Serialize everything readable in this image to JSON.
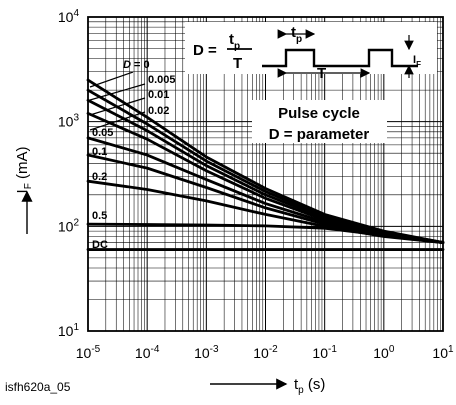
{
  "chart_data": {
    "type": "line",
    "figure_id": "isfh620a_05",
    "xlabel": {
      "prefix": "t",
      "sub": "p",
      "suffix": " (s)"
    },
    "ylabel": {
      "prefix": "I",
      "sub": "F",
      "suffix": " (mA)"
    },
    "xscale": "log",
    "yscale": "log",
    "xlim": [
      1e-05,
      10
    ],
    "ylim": [
      10,
      10000
    ],
    "grid": true,
    "x_ticks": [
      {
        "base": "10",
        "exp": "-5",
        "value": 1e-05
      },
      {
        "base": "10",
        "exp": "-4",
        "value": 0.0001
      },
      {
        "base": "10",
        "exp": "-3",
        "value": 0.001
      },
      {
        "base": "10",
        "exp": "-2",
        "value": 0.01
      },
      {
        "base": "10",
        "exp": "-1",
        "value": 0.1
      },
      {
        "base": "10",
        "exp": "0",
        "value": 1
      },
      {
        "base": "10",
        "exp": "1",
        "value": 10
      }
    ],
    "y_ticks": [
      {
        "base": "10",
        "exp": "1",
        "value": 10
      },
      {
        "base": "10",
        "exp": "2",
        "value": 100
      },
      {
        "base": "10",
        "exp": "3",
        "value": 1000
      },
      {
        "base": "10",
        "exp": "4",
        "value": 10000
      }
    ],
    "series_labels": [
      "D = 0",
      "0.005",
      "0.01",
      "0.02",
      "0.05",
      "0.1",
      "0.2",
      "0.5",
      "DC"
    ],
    "series": [
      {
        "name": "D = 0",
        "points": [
          [
            1e-05,
            2500
          ],
          [
            0.0001,
            1100
          ],
          [
            0.001,
            460
          ],
          [
            0.01,
            230
          ],
          [
            0.1,
            130
          ],
          [
            1,
            90
          ],
          [
            10,
            70
          ]
        ]
      },
      {
        "name": "0.005",
        "points": [
          [
            1e-05,
            2000
          ],
          [
            0.0001,
            950
          ],
          [
            0.001,
            420
          ],
          [
            0.01,
            215
          ],
          [
            0.1,
            125
          ],
          [
            1,
            88
          ],
          [
            10,
            70
          ]
        ]
      },
      {
        "name": "0.01",
        "points": [
          [
            1e-05,
            1600
          ],
          [
            0.0001,
            820
          ],
          [
            0.001,
            380
          ],
          [
            0.01,
            200
          ],
          [
            0.1,
            120
          ],
          [
            1,
            86
          ],
          [
            10,
            70
          ]
        ]
      },
      {
        "name": "0.02",
        "points": [
          [
            1e-05,
            1200
          ],
          [
            0.0001,
            680
          ],
          [
            0.001,
            340
          ],
          [
            0.01,
            185
          ],
          [
            0.1,
            115
          ],
          [
            1,
            85
          ],
          [
            10,
            70
          ]
        ]
      },
      {
        "name": "0.05",
        "points": [
          [
            1e-05,
            700
          ],
          [
            0.0001,
            480
          ],
          [
            0.001,
            280
          ],
          [
            0.01,
            165
          ],
          [
            0.1,
            110
          ],
          [
            1,
            83
          ],
          [
            10,
            70
          ]
        ]
      },
      {
        "name": "0.1",
        "points": [
          [
            1e-05,
            480
          ],
          [
            0.0001,
            360
          ],
          [
            0.001,
            235
          ],
          [
            0.01,
            150
          ],
          [
            0.1,
            105
          ],
          [
            1,
            82
          ],
          [
            10,
            70
          ]
        ]
      },
      {
        "name": "0.2",
        "points": [
          [
            1e-05,
            270
          ],
          [
            0.0001,
            225
          ],
          [
            0.001,
            175
          ],
          [
            0.01,
            130
          ],
          [
            0.1,
            100
          ],
          [
            1,
            80
          ],
          [
            10,
            70
          ]
        ]
      },
      {
        "name": "0.5",
        "points": [
          [
            1e-05,
            105
          ],
          [
            0.0001,
            104
          ],
          [
            0.001,
            103
          ],
          [
            0.01,
            101
          ],
          [
            0.1,
            96
          ],
          [
            1,
            82
          ],
          [
            10,
            70
          ]
        ]
      },
      {
        "name": "DC",
        "points": [
          [
            1e-05,
            60
          ],
          [
            10,
            60
          ]
        ]
      }
    ],
    "inset": {
      "formula": {
        "lhs": "D",
        "numerator_base": "t",
        "numerator_sub": "p",
        "denominator": "T"
      },
      "pulse_labels": {
        "tp_base": "t",
        "tp_sub": "p",
        "period": "T",
        "current_base": "I",
        "current_sub": "F"
      },
      "legend_title": "Pulse cycle",
      "legend_subtitle": "D = parameter"
    }
  }
}
